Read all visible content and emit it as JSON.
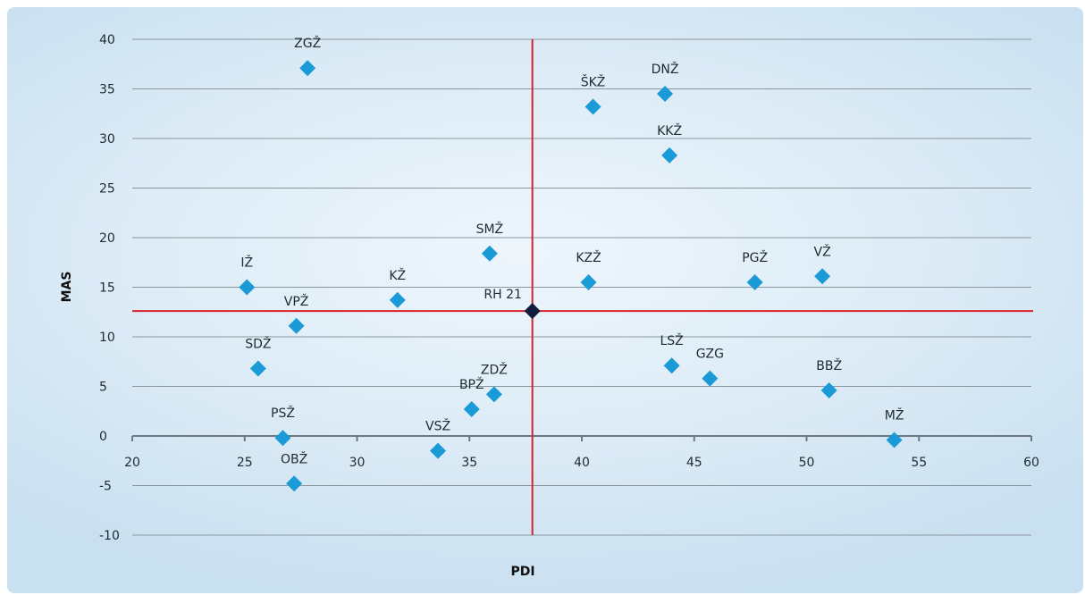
{
  "chart_data": {
    "type": "scatter",
    "xlabel": "PDI",
    "ylabel": "MAS",
    "xlim": [
      20,
      60
    ],
    "ylim": [
      -10,
      40
    ],
    "x_ticks": [
      "20",
      "25",
      "30",
      "35",
      "40",
      "45",
      "50",
      "55",
      "60"
    ],
    "y_ticks": [
      "40",
      "35",
      "30",
      "25",
      "20",
      "15",
      "10",
      "5",
      "0",
      "-5",
      "-10"
    ],
    "grid": true,
    "reference": {
      "label": "RH 21",
      "x": 37.8,
      "y": 12.6
    },
    "points": [
      {
        "label": "ZGŽ",
        "x": 27.8,
        "y": 37.1
      },
      {
        "label": "ŠKŽ",
        "x": 40.5,
        "y": 33.2
      },
      {
        "label": "DNŽ",
        "x": 43.7,
        "y": 34.5
      },
      {
        "label": "KKŽ",
        "x": 43.9,
        "y": 28.3
      },
      {
        "label": "SMŽ",
        "x": 35.9,
        "y": 18.4
      },
      {
        "label": "KZŽ",
        "x": 40.3,
        "y": 15.5
      },
      {
        "label": "PGŽ",
        "x": 47.7,
        "y": 15.5
      },
      {
        "label": "VŽ",
        "x": 50.7,
        "y": 16.1
      },
      {
        "label": "IŽ",
        "x": 25.1,
        "y": 15.0
      },
      {
        "label": "KŽ",
        "x": 31.8,
        "y": 13.7
      },
      {
        "label": "VPŽ",
        "x": 27.3,
        "y": 11.1
      },
      {
        "label": "SDŽ",
        "x": 25.6,
        "y": 6.8
      },
      {
        "label": "LSŽ",
        "x": 44.0,
        "y": 7.1
      },
      {
        "label": "GZG",
        "x": 45.7,
        "y": 5.8
      },
      {
        "label": "BBŽ",
        "x": 51.0,
        "y": 4.6
      },
      {
        "label": "ZDŽ",
        "x": 36.1,
        "y": 4.2
      },
      {
        "label": "BPŽ",
        "x": 35.1,
        "y": 2.7
      },
      {
        "label": "PSŽ",
        "x": 26.7,
        "y": -0.2
      },
      {
        "label": "MŽ",
        "x": 53.9,
        "y": -0.4
      },
      {
        "label": "VSŽ",
        "x": 33.6,
        "y": -1.5
      },
      {
        "label": "OBŽ",
        "x": 27.2,
        "y": -4.8
      }
    ]
  },
  "colors": {
    "point": "#1a9ad6",
    "reference_point": "#0f1c3d",
    "reference_lines": "#d8212a",
    "grid": "#8a969e",
    "axis": "#6e7880"
  }
}
